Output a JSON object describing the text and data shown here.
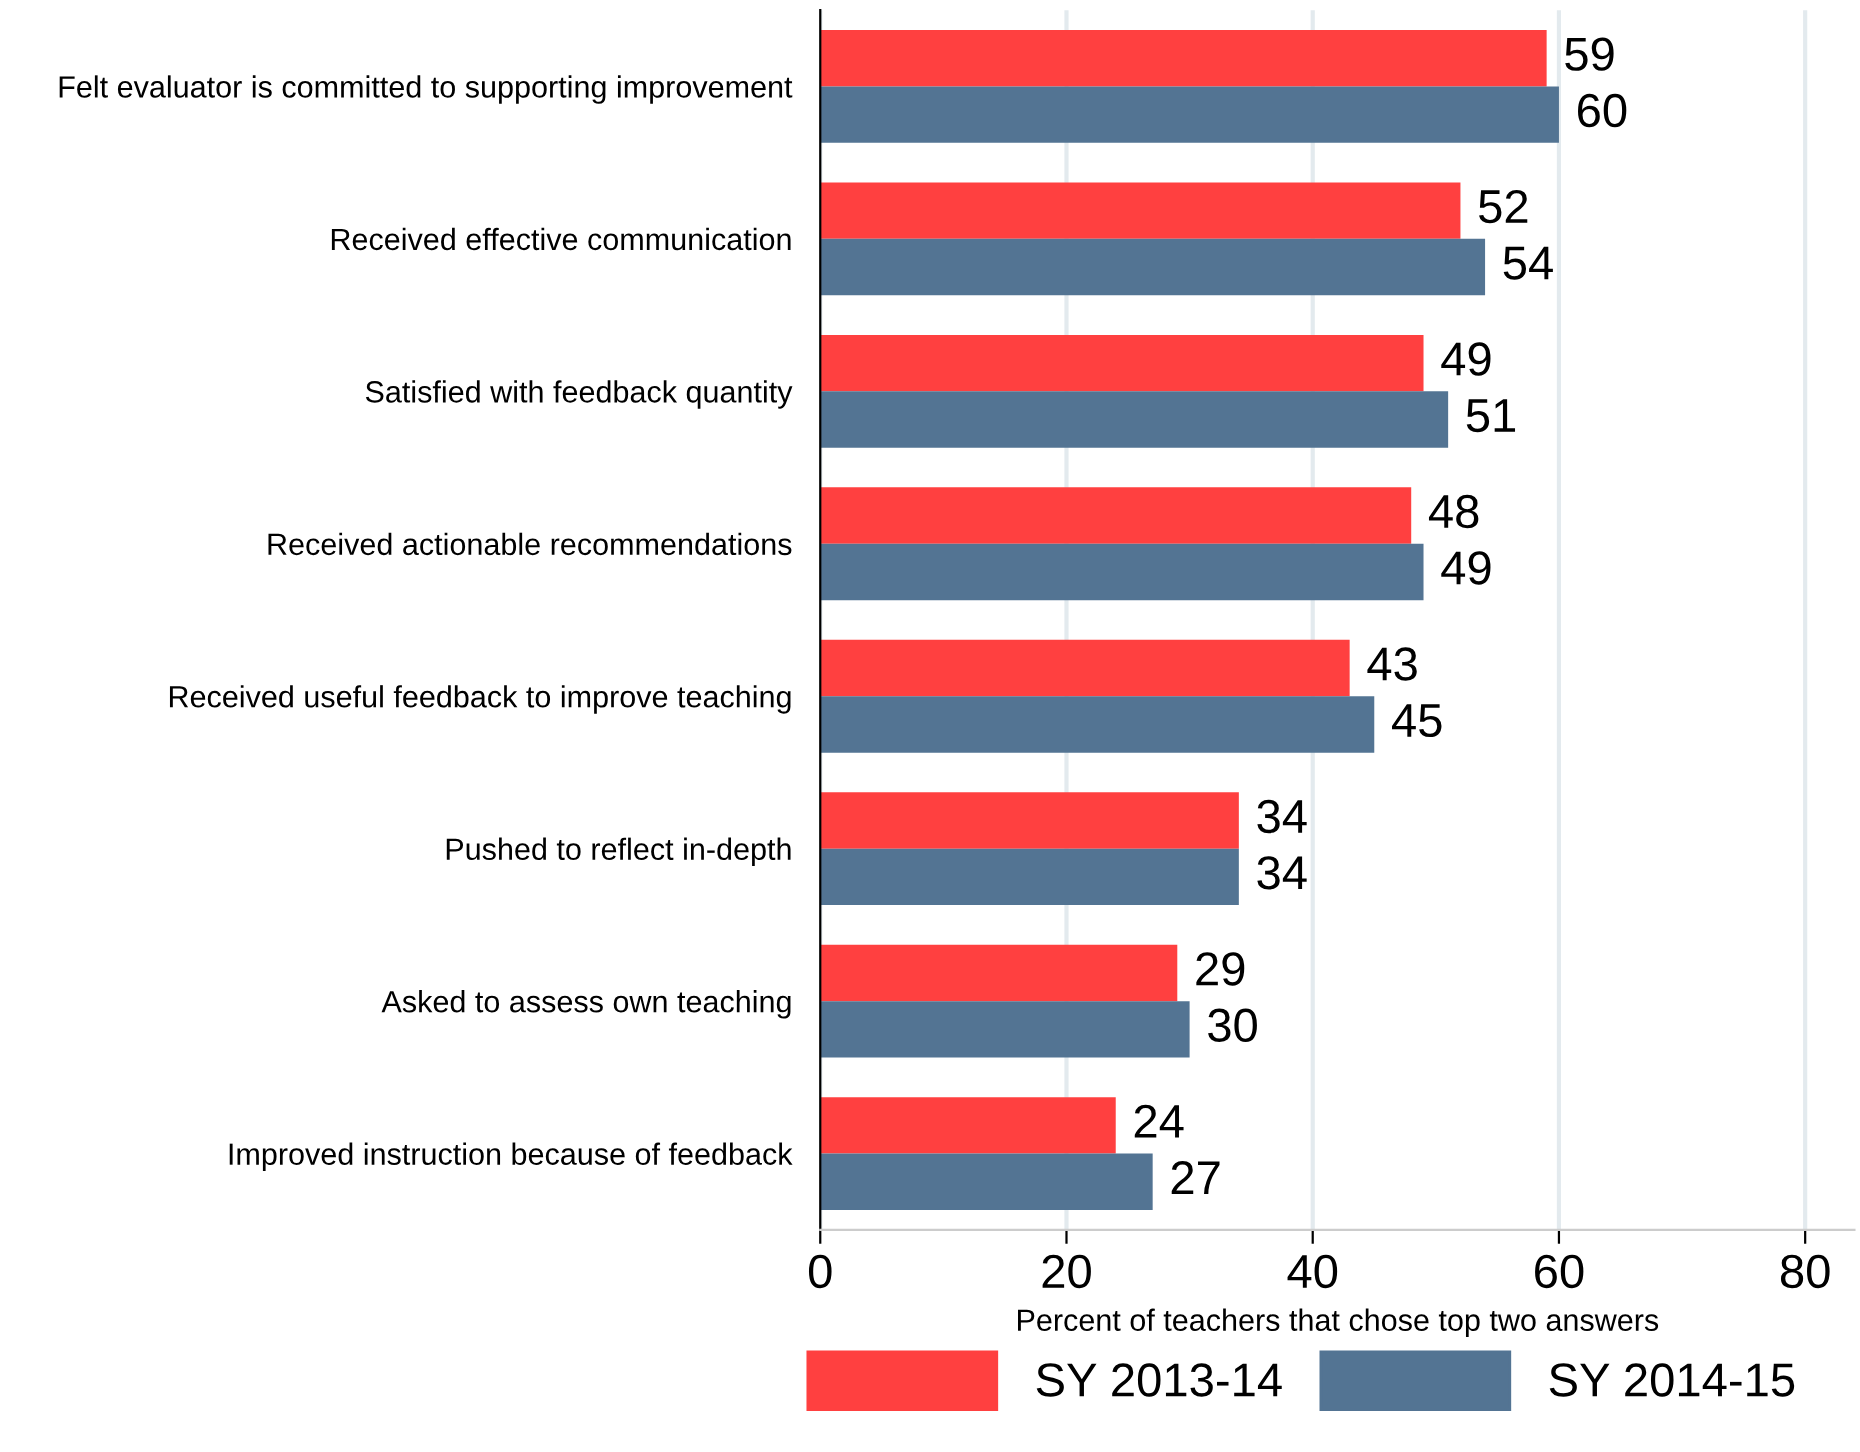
{
  "chart_data": {
    "type": "bar",
    "orientation": "horizontal",
    "xlabel": "Percent of teachers that chose top two answers",
    "categories": [
      "Felt evaluator is committed to supporting improvement",
      "Received effective communication",
      "Satisfied with feedback quantity",
      "Received actionable recommendations",
      "Received useful feedback to improve teaching",
      "Pushed to reflect in-depth",
      "Asked to assess own teaching",
      "Improved instruction because of feedback"
    ],
    "series": [
      {
        "name": "SY 2013-14",
        "color": "#ff4040",
        "values": [
          59,
          52,
          49,
          48,
          43,
          34,
          29,
          24
        ]
      },
      {
        "name": "SY 2014-15",
        "color": "#537493",
        "values": [
          60,
          54,
          51,
          49,
          45,
          34,
          30,
          27
        ]
      }
    ],
    "xlim": [
      0,
      84
    ],
    "xticks": [
      0,
      20,
      40,
      60,
      80
    ],
    "grid": "x",
    "data_labels": true,
    "legend": "bottom"
  }
}
